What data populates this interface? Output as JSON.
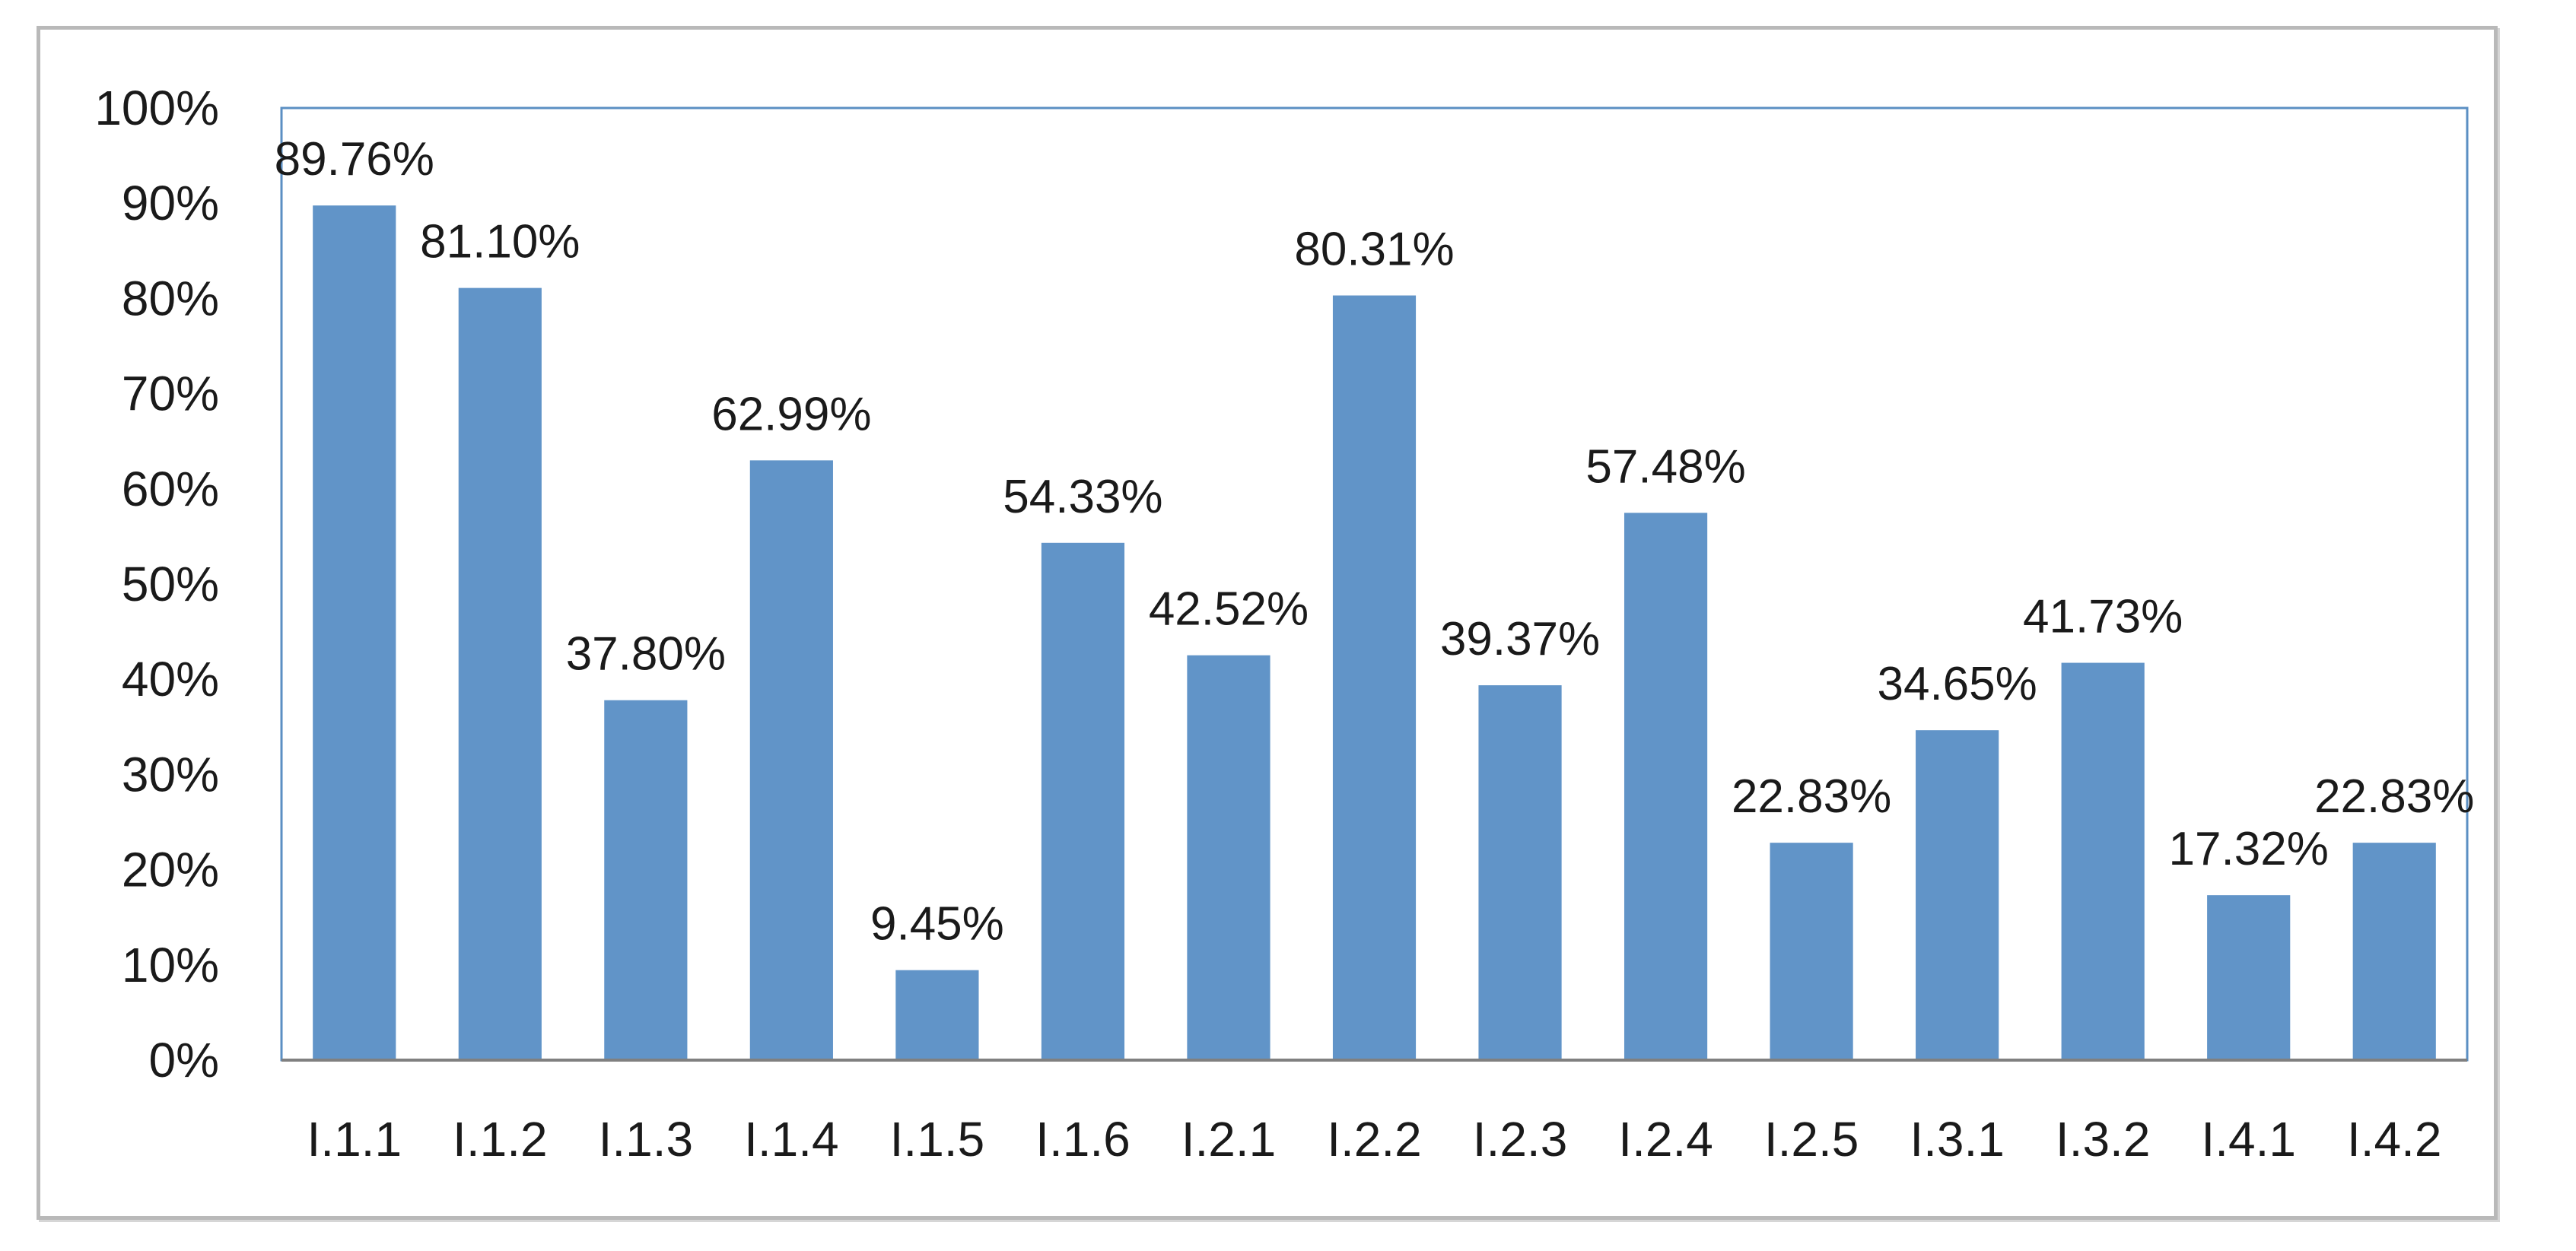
{
  "colors": {
    "bar": "#6194c8",
    "plot_border": "#5b8fc3",
    "axis": "#808080",
    "frame": "#b9b9b9"
  },
  "chart_data": {
    "type": "bar",
    "title": "",
    "xlabel": "",
    "ylabel": "",
    "ylim": [
      0,
      1
    ],
    "y_ticks": [
      "0%",
      "10%",
      "20%",
      "30%",
      "40%",
      "50%",
      "60%",
      "70%",
      "80%",
      "90%",
      "100%"
    ],
    "grid": false,
    "legend": "none",
    "categories": [
      "I.1.1",
      "I.1.2",
      "I.1.3",
      "I.1.4",
      "I.1.5",
      "I.1.6",
      "I.2.1",
      "I.2.2",
      "I.2.3",
      "I.2.4",
      "I.2.5",
      "I.3.1",
      "I.3.2",
      "I.4.1",
      "I.4.2"
    ],
    "values": [
      0.8976,
      0.811,
      0.378,
      0.6299,
      0.0945,
      0.5433,
      0.4252,
      0.8031,
      0.3937,
      0.5748,
      0.2283,
      0.3465,
      0.4173,
      0.1732,
      0.2283
    ],
    "data_labels": [
      "89.76%",
      "81.10%",
      "37.80%",
      "62.99%",
      "9.45%",
      "54.33%",
      "42.52%",
      "80.31%",
      "39.37%",
      "57.48%",
      "22.83%",
      "34.65%",
      "41.73%",
      "17.32%",
      "22.83%"
    ]
  }
}
